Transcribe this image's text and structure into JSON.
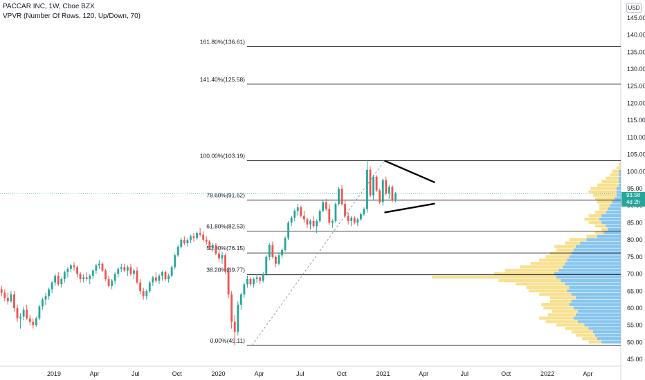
{
  "header": {
    "title": "PACCAR INC, 1W, Cboe BZX",
    "indicator": "VPVR (Number Of Rows, 120, Up/Down, 70)",
    "currency": "USD"
  },
  "price_tag": {
    "price": "93.58",
    "countdown": "4d 2h"
  },
  "colors": {
    "up": "#26a69a",
    "down": "#ef5350",
    "vp_up": "#5fb2ea",
    "vp_down": "#f6d56a"
  },
  "chart_data": {
    "type": "candlestick",
    "y_axis": {
      "min": 43,
      "max": 148,
      "ticks": [
        45,
        50,
        55,
        60,
        65,
        70,
        75,
        80,
        85,
        90,
        95,
        100,
        105,
        110,
        115,
        120,
        125,
        130,
        135,
        140,
        145
      ],
      "position": "right"
    },
    "x_axis": {
      "start": "2018-09-03",
      "end": "2022-06-13",
      "ticks": [
        {
          "date": "2019-01-01",
          "label": "2019"
        },
        {
          "date": "2019-04-01",
          "label": "Apr"
        },
        {
          "date": "2019-07-01",
          "label": "Jul"
        },
        {
          "date": "2019-10-01",
          "label": "Oct"
        },
        {
          "date": "2020-01-01",
          "label": "2020"
        },
        {
          "date": "2020-04-01",
          "label": "Apr"
        },
        {
          "date": "2020-07-01",
          "label": "Jul"
        },
        {
          "date": "2020-10-01",
          "label": "Oct"
        },
        {
          "date": "2021-01-01",
          "label": "2021"
        },
        {
          "date": "2021-04-01",
          "label": "Apr"
        },
        {
          "date": "2021-07-01",
          "label": "Jul"
        },
        {
          "date": "2021-10-01",
          "label": "Oct"
        },
        {
          "date": "2022-01-01",
          "label": "2022"
        },
        {
          "date": "2022-04-01",
          "label": "Apr"
        }
      ]
    },
    "fib_levels": [
      {
        "label": "0.00%(49.11)",
        "value": 49.11
      },
      {
        "label": "38.20%(69.77)",
        "value": 69.77
      },
      {
        "label": "50.00%(76.15)",
        "value": 76.15
      },
      {
        "label": "61.80%(82.53)",
        "value": 82.53
      },
      {
        "label": "78.60%(91.62)",
        "value": 91.62
      },
      {
        "label": "100.00%(103.19)",
        "value": 103.19
      },
      {
        "label": "141.40%(125.58)",
        "value": 125.58
      },
      {
        "label": "161.80%(136.61)",
        "value": 136.61
      }
    ],
    "trend_line": {
      "from": {
        "date": "2020-03-16",
        "value": 49.11
      },
      "to": {
        "date": "2021-01-04",
        "value": 103.19
      }
    },
    "triangle": {
      "upper": {
        "from": {
          "date": "2021-01-04",
          "value": 103.19
        },
        "to": {
          "date": "2021-04-26",
          "value": 96.8
        }
      },
      "lower": {
        "from": {
          "date": "2021-01-04",
          "value": 88.0
        },
        "to": {
          "date": "2021-04-26",
          "value": 90.6
        }
      }
    },
    "current_price": 93.58,
    "candles": [
      [
        65.5,
        66.5,
        63.5,
        64.5
      ],
      [
        64.5,
        65.5,
        62.0,
        63.0
      ],
      [
        63.0,
        64.5,
        61.0,
        62.0
      ],
      [
        62.0,
        65.0,
        61.5,
        64.0
      ],
      [
        64.0,
        65.0,
        59.0,
        60.0
      ],
      [
        60.0,
        61.0,
        56.0,
        57.0
      ],
      [
        57.0,
        58.5,
        54.0,
        57.5
      ],
      [
        57.5,
        60.5,
        56.5,
        59.5
      ],
      [
        59.5,
        61.0,
        56.5,
        57.0
      ],
      [
        57.0,
        58.0,
        55.0,
        56.0
      ],
      [
        56.0,
        57.0,
        54.0,
        55.0
      ],
      [
        55.0,
        57.5,
        54.5,
        57.0
      ],
      [
        57.0,
        61.0,
        56.5,
        60.5
      ],
      [
        60.5,
        63.0,
        59.5,
        62.5
      ],
      [
        62.5,
        64.5,
        61.0,
        63.5
      ],
      [
        63.5,
        66.0,
        62.5,
        65.5
      ],
      [
        65.5,
        68.0,
        64.5,
        67.5
      ],
      [
        67.5,
        70.0,
        66.5,
        69.5
      ],
      [
        69.5,
        70.5,
        66.5,
        67.0
      ],
      [
        67.0,
        69.0,
        66.0,
        68.5
      ],
      [
        68.5,
        71.0,
        67.5,
        70.5
      ],
      [
        70.5,
        72.0,
        69.0,
        71.5
      ],
      [
        71.5,
        73.0,
        70.5,
        72.5
      ],
      [
        72.5,
        73.5,
        71.0,
        72.0
      ],
      [
        72.0,
        72.5,
        69.0,
        70.0
      ],
      [
        70.0,
        70.5,
        67.5,
        68.5
      ],
      [
        68.5,
        70.0,
        67.5,
        69.0
      ],
      [
        69.0,
        70.5,
        68.0,
        68.5
      ],
      [
        68.5,
        70.0,
        67.0,
        69.5
      ],
      [
        69.5,
        71.5,
        68.5,
        71.0
      ],
      [
        71.0,
        73.0,
        70.0,
        72.5
      ],
      [
        72.5,
        74.0,
        71.5,
        73.0
      ],
      [
        73.0,
        73.5,
        70.5,
        71.0
      ],
      [
        71.0,
        71.5,
        68.0,
        68.5
      ],
      [
        68.5,
        69.5,
        66.0,
        66.5
      ],
      [
        66.5,
        68.5,
        65.5,
        68.0
      ],
      [
        68.0,
        70.5,
        67.0,
        70.0
      ],
      [
        70.0,
        72.0,
        69.0,
        71.5
      ],
      [
        71.5,
        73.0,
        70.5,
        72.0
      ],
      [
        72.0,
        73.0,
        70.5,
        71.0
      ],
      [
        71.0,
        72.5,
        69.5,
        72.0
      ],
      [
        72.0,
        73.0,
        69.5,
        70.0
      ],
      [
        70.0,
        71.5,
        68.5,
        71.0
      ],
      [
        71.0,
        72.0,
        67.0,
        67.5
      ],
      [
        67.5,
        68.5,
        64.0,
        65.0
      ],
      [
        65.0,
        66.0,
        62.5,
        63.5
      ],
      [
        63.5,
        65.5,
        62.5,
        65.0
      ],
      [
        65.0,
        68.0,
        64.5,
        67.5
      ],
      [
        67.5,
        69.5,
        66.5,
        69.0
      ],
      [
        69.0,
        70.5,
        67.5,
        68.0
      ],
      [
        68.0,
        70.0,
        67.0,
        69.5
      ],
      [
        69.5,
        71.0,
        68.0,
        70.5
      ],
      [
        70.5,
        71.0,
        68.0,
        68.5
      ],
      [
        68.5,
        70.0,
        67.5,
        69.5
      ],
      [
        69.5,
        72.5,
        69.0,
        72.0
      ],
      [
        72.0,
        76.0,
        71.5,
        75.5
      ],
      [
        75.5,
        78.5,
        75.0,
        78.0
      ],
      [
        78.0,
        80.5,
        77.5,
        80.0
      ],
      [
        80.0,
        81.0,
        78.5,
        79.0
      ],
      [
        79.0,
        80.5,
        78.0,
        80.0
      ],
      [
        80.0,
        81.5,
        79.0,
        81.0
      ],
      [
        81.0,
        82.0,
        79.5,
        80.5
      ],
      [
        80.5,
        82.5,
        80.0,
        82.0
      ],
      [
        82.0,
        83.5,
        81.0,
        81.5
      ],
      [
        81.5,
        82.5,
        79.5,
        80.0
      ],
      [
        80.0,
        81.0,
        78.5,
        79.5
      ],
      [
        79.5,
        80.0,
        77.0,
        77.5
      ],
      [
        77.5,
        79.0,
        76.5,
        78.5
      ],
      [
        78.5,
        79.0,
        75.5,
        76.0
      ],
      [
        76.0,
        77.0,
        73.5,
        74.5
      ],
      [
        74.5,
        76.5,
        73.0,
        75.5
      ],
      [
        75.5,
        76.0,
        70.0,
        71.0
      ],
      [
        71.0,
        72.0,
        63.0,
        64.0
      ],
      [
        64.0,
        65.0,
        54.0,
        56.0
      ],
      [
        56.0,
        58.0,
        49.11,
        53.0
      ],
      [
        53.0,
        62.0,
        52.0,
        61.0
      ],
      [
        61.0,
        64.5,
        59.5,
        64.0
      ],
      [
        64.0,
        67.5,
        63.0,
        67.0
      ],
      [
        67.0,
        69.5,
        66.0,
        68.5
      ],
      [
        68.5,
        69.0,
        66.5,
        67.0
      ],
      [
        67.0,
        69.0,
        66.0,
        68.5
      ],
      [
        68.5,
        70.0,
        67.5,
        69.0
      ],
      [
        69.0,
        69.5,
        67.0,
        68.0
      ],
      [
        68.0,
        70.5,
        67.5,
        70.0
      ],
      [
        70.0,
        75.5,
        69.5,
        75.0
      ],
      [
        75.0,
        79.0,
        74.0,
        78.5
      ],
      [
        78.5,
        79.5,
        74.5,
        75.0
      ],
      [
        75.0,
        75.5,
        72.0,
        73.0
      ],
      [
        73.0,
        76.0,
        72.5,
        75.5
      ],
      [
        75.5,
        77.5,
        74.5,
        77.0
      ],
      [
        77.0,
        81.0,
        76.5,
        80.5
      ],
      [
        80.5,
        85.5,
        80.0,
        85.0
      ],
      [
        85.0,
        87.0,
        84.0,
        86.5
      ],
      [
        86.5,
        89.0,
        85.5,
        88.5
      ],
      [
        88.5,
        90.5,
        87.0,
        89.5
      ],
      [
        89.5,
        90.0,
        86.5,
        87.0
      ],
      [
        87.0,
        88.5,
        85.0,
        86.0
      ],
      [
        86.0,
        86.5,
        83.5,
        84.5
      ],
      [
        84.5,
        86.0,
        83.0,
        85.5
      ],
      [
        85.5,
        87.0,
        83.5,
        84.0
      ],
      [
        84.0,
        86.0,
        82.0,
        85.5
      ],
      [
        85.5,
        89.0,
        85.0,
        88.5
      ],
      [
        88.5,
        91.5,
        88.0,
        91.0
      ],
      [
        91.0,
        92.0,
        88.5,
        89.0
      ],
      [
        89.0,
        90.5,
        84.5,
        85.0
      ],
      [
        85.0,
        86.0,
        83.5,
        85.5
      ],
      [
        85.5,
        91.0,
        85.0,
        90.5
      ],
      [
        90.5,
        95.5,
        90.0,
        95.0
      ],
      [
        95.0,
        96.0,
        90.0,
        90.5
      ],
      [
        90.5,
        91.5,
        86.5,
        87.0
      ],
      [
        87.0,
        88.0,
        84.5,
        85.5
      ],
      [
        85.5,
        87.0,
        84.0,
        86.5
      ],
      [
        86.5,
        87.0,
        84.5,
        85.0
      ],
      [
        85.0,
        86.5,
        84.0,
        86.0
      ],
      [
        86.0,
        88.0,
        85.5,
        87.5
      ],
      [
        87.5,
        89.5,
        87.0,
        89.0
      ],
      [
        89.0,
        103.19,
        88.0,
        100.5
      ],
      [
        100.5,
        101.5,
        92.5,
        93.0
      ],
      [
        93.0,
        99.0,
        91.5,
        98.5
      ],
      [
        98.5,
        99.0,
        94.0,
        94.5
      ],
      [
        94.5,
        95.0,
        90.5,
        91.0
      ],
      [
        91.0,
        98.0,
        90.0,
        97.5
      ],
      [
        97.5,
        98.5,
        93.0,
        93.5
      ],
      [
        93.5,
        96.0,
        92.0,
        95.5
      ],
      [
        95.5,
        96.0,
        91.0,
        91.5
      ],
      [
        91.5,
        94.0,
        91.0,
        93.58
      ]
    ],
    "volume_profile": [
      {
        "price": 50.0,
        "up": 18,
        "down": 12
      },
      {
        "price": 51.0,
        "up": 22,
        "down": 14
      },
      {
        "price": 52.0,
        "up": 24,
        "down": 18
      },
      {
        "price": 53.0,
        "up": 26,
        "down": 20
      },
      {
        "price": 54.0,
        "up": 30,
        "down": 22
      },
      {
        "price": 55.0,
        "up": 34,
        "down": 26
      },
      {
        "price": 56.0,
        "up": 40,
        "down": 30
      },
      {
        "price": 57.0,
        "up": 44,
        "down": 32
      },
      {
        "price": 58.0,
        "up": 42,
        "down": 26
      },
      {
        "price": 59.0,
        "up": 40,
        "down": 24
      },
      {
        "price": 60.0,
        "up": 44,
        "down": 28
      },
      {
        "price": 61.0,
        "up": 48,
        "down": 26
      },
      {
        "price": 62.0,
        "up": 46,
        "down": 20
      },
      {
        "price": 63.0,
        "up": 42,
        "down": 24
      },
      {
        "price": 64.0,
        "up": 46,
        "down": 30
      },
      {
        "price": 65.0,
        "up": 50,
        "down": 36
      },
      {
        "price": 66.0,
        "up": 48,
        "down": 40
      },
      {
        "price": 67.0,
        "up": 52,
        "down": 46
      },
      {
        "price": 68.0,
        "up": 56,
        "down": 58
      },
      {
        "price": 69.0,
        "up": 60,
        "down": 116
      },
      {
        "price": 70.0,
        "up": 62,
        "down": 56
      },
      {
        "price": 71.0,
        "up": 58,
        "down": 50
      },
      {
        "price": 72.0,
        "up": 54,
        "down": 40
      },
      {
        "price": 73.0,
        "up": 52,
        "down": 32
      },
      {
        "price": 74.0,
        "up": 50,
        "down": 26
      },
      {
        "price": 75.0,
        "up": 48,
        "down": 22
      },
      {
        "price": 76.0,
        "up": 46,
        "down": 20
      },
      {
        "price": 77.0,
        "up": 44,
        "down": 16
      },
      {
        "price": 78.0,
        "up": 42,
        "down": 20
      },
      {
        "price": 79.0,
        "up": 38,
        "down": 14
      },
      {
        "price": 80.0,
        "up": 32,
        "down": 16
      },
      {
        "price": 81.0,
        "up": 22,
        "down": 10
      },
      {
        "price": 82.0,
        "up": 16,
        "down": 8
      },
      {
        "price": 83.0,
        "up": 12,
        "down": 6
      },
      {
        "price": 84.0,
        "up": 14,
        "down": 10
      },
      {
        "price": 85.0,
        "up": 18,
        "down": 12
      },
      {
        "price": 86.0,
        "up": 20,
        "down": 14
      },
      {
        "price": 87.0,
        "up": 18,
        "down": 12
      },
      {
        "price": 88.0,
        "up": 14,
        "down": 10
      },
      {
        "price": 89.0,
        "up": 12,
        "down": 8
      },
      {
        "price": 90.0,
        "up": 10,
        "down": 10
      },
      {
        "price": 91.0,
        "up": 8,
        "down": 14
      },
      {
        "price": 92.0,
        "up": 6,
        "down": 18
      },
      {
        "price": 93.0,
        "up": 4,
        "down": 22
      },
      {
        "price": 94.0,
        "up": 4,
        "down": 26
      },
      {
        "price": 95.0,
        "up": 4,
        "down": 24
      },
      {
        "price": 96.0,
        "up": 2,
        "down": 20
      },
      {
        "price": 97.0,
        "up": 2,
        "down": 16
      },
      {
        "price": 98.0,
        "up": 2,
        "down": 12
      },
      {
        "price": 99.0,
        "up": 2,
        "down": 8
      },
      {
        "price": 100.0,
        "up": 2,
        "down": 6
      },
      {
        "price": 101.0,
        "up": 0,
        "down": 4
      },
      {
        "price": 102.0,
        "up": 0,
        "down": 2
      }
    ]
  }
}
